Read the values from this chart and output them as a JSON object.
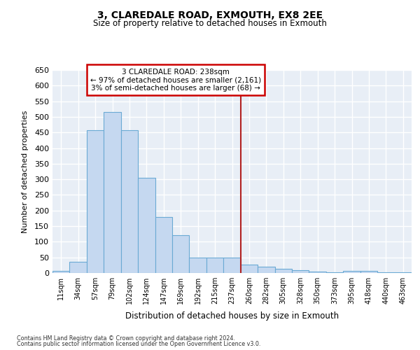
{
  "title1": "3, CLAREDALE ROAD, EXMOUTH, EX8 2EE",
  "title2": "Size of property relative to detached houses in Exmouth",
  "xlabel": "Distribution of detached houses by size in Exmouth",
  "ylabel": "Number of detached properties",
  "categories": [
    "11sqm",
    "34sqm",
    "57sqm",
    "79sqm",
    "102sqm",
    "124sqm",
    "147sqm",
    "169sqm",
    "192sqm",
    "215sqm",
    "237sqm",
    "260sqm",
    "282sqm",
    "305sqm",
    "328sqm",
    "350sqm",
    "373sqm",
    "395sqm",
    "418sqm",
    "440sqm",
    "463sqm"
  ],
  "values": [
    7,
    35,
    457,
    515,
    457,
    305,
    180,
    120,
    50,
    50,
    50,
    27,
    20,
    13,
    8,
    5,
    3,
    7,
    7,
    3,
    3
  ],
  "bar_color": "#c5d8f0",
  "bar_edge_color": "#6aaad4",
  "background_color": "#e8eef6",
  "grid_color": "#ffffff",
  "prop_line_color": "#b22222",
  "prop_line_index": 10,
  "annotation_line1": "3 CLAREDALE ROAD: 238sqm",
  "annotation_line2": "← 97% of detached houses are smaller (2,161)",
  "annotation_line3": "3% of semi-detached houses are larger (68) →",
  "annotation_box_facecolor": "#ffffff",
  "annotation_box_edgecolor": "#cc0000",
  "ylim_max": 650,
  "yticks": [
    0,
    50,
    100,
    150,
    200,
    250,
    300,
    350,
    400,
    450,
    500,
    550,
    600,
    650
  ],
  "footer1": "Contains HM Land Registry data © Crown copyright and database right 2024.",
  "footer2": "Contains public sector information licensed under the Open Government Licence v3.0."
}
